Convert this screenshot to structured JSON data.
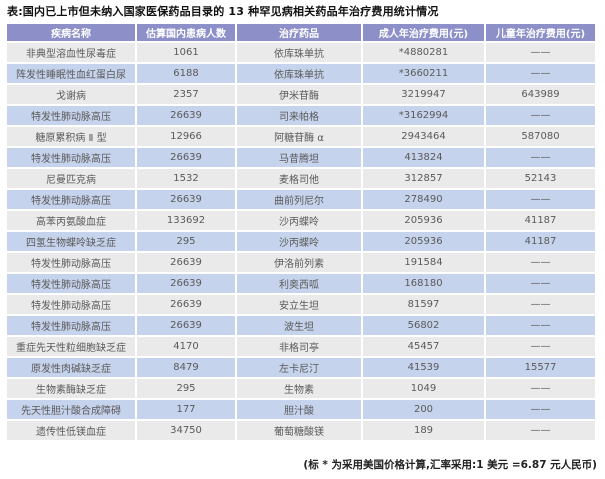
{
  "page": {
    "title": "表:国内已上市但未纳入国家医保药品目录的 13 种罕见病相关药品年治疗费用统计情况",
    "footnote": "(标 * 为采用美国价格计算,汇率采用:1 美元 =6.87 元人民币)"
  },
  "chart_data": {
    "type": "table",
    "title": "表:国内已上市但未纳入国家医保药品目录的 13 种罕见病相关药品年治疗费用统计情况",
    "columns": [
      "疾病名称",
      "估算国内患病人数",
      "治疗药品",
      "成人年治疗费用(元)",
      "儿童年治疗费用(元)"
    ],
    "rows": [
      [
        "非典型溶血性尿毒症",
        "1061",
        "依库珠单抗",
        "*4880281",
        "——"
      ],
      [
        "阵发性睡眠性血红蛋白尿",
        "6188",
        "依库珠单抗",
        "*3660211",
        "——"
      ],
      [
        "戈谢病",
        "2357",
        "伊米苷酶",
        "3219947",
        "643989"
      ],
      [
        "特发性肺动脉高压",
        "26639",
        "司来帕格",
        "*3162994",
        "——"
      ],
      [
        "糖原累积病 Ⅱ 型",
        "12966",
        "阿糖苷酶 α",
        "2943464",
        "587080"
      ],
      [
        "特发性肺动脉高压",
        "26639",
        "马昔腾坦",
        "413824",
        "——"
      ],
      [
        "尼曼匹克病",
        "1532",
        "麦格司他",
        "312857",
        "52143"
      ],
      [
        "特发性肺动脉高压",
        "26639",
        "曲前列尼尔",
        "278490",
        "——"
      ],
      [
        "高苯丙氨酸血症",
        "133692",
        "沙丙蝶呤",
        "205936",
        "41187"
      ],
      [
        "四氢生物蝶呤缺乏症",
        "295",
        "沙丙蝶呤",
        "205936",
        "41187"
      ],
      [
        "特发性肺动脉高压",
        "26639",
        "伊洛前列素",
        "191584",
        "——"
      ],
      [
        "特发性肺动脉高压",
        "26639",
        "利奥西呱",
        "168180",
        "——"
      ],
      [
        "特发性肺动脉高压",
        "26639",
        "安立生坦",
        "81597",
        "——"
      ],
      [
        "特发性肺动脉高压",
        "26639",
        "波生坦",
        "56802",
        "——"
      ],
      [
        "重症先天性粒细胞缺乏症",
        "4170",
        "非格司亭",
        "45457",
        "——"
      ],
      [
        "原发性肉碱缺乏症",
        "8479",
        "左卡尼汀",
        "41539",
        "15577"
      ],
      [
        "生物素酶缺乏症",
        "295",
        "生物素",
        "1049",
        "——"
      ],
      [
        "先天性胆汁酸合成障碍",
        "177",
        "胆汁酸",
        "200",
        "——"
      ],
      [
        "遗传性低镁血症",
        "34750",
        "葡萄糖酸镁",
        "189",
        "——"
      ]
    ],
    "footnote": "(标 * 为采用美国价格计算,汇率采用:1 美元 =6.87 元人民币)",
    "layout": {
      "grid": "white 2px separators",
      "legend_position": "none"
    }
  },
  "colors": {
    "header_bg": "#8c8fc8",
    "header_text": "#ffffff",
    "row_blue": "#c6d3ec",
    "row_gray": "#eaeaea",
    "cell_text": "#5a5a5a",
    "title_text": "#111111",
    "footnote_text": "#222222"
  }
}
